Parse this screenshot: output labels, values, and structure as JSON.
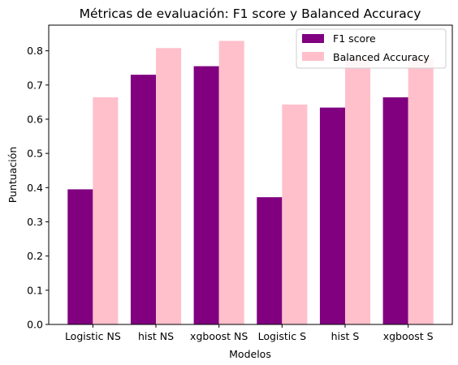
{
  "chart_data": {
    "type": "bar",
    "title": "Métricas de evaluación: F1 score y Balanced Accuracy",
    "xlabel": "Modelos",
    "ylabel": "Puntuación",
    "categories": [
      "Logistic NS",
      "hist NS",
      "xgboost NS",
      "Logistic S",
      "hist S",
      "xgboost S"
    ],
    "series": [
      {
        "name": "F1 score",
        "color": "#800080",
        "values": [
          0.395,
          0.73,
          0.755,
          0.372,
          0.634,
          0.664
        ]
      },
      {
        "name": "Balanced Accuracy",
        "color": "#FFC0CB",
        "values": [
          0.664,
          0.808,
          0.829,
          0.643,
          0.778,
          0.778
        ]
      }
    ],
    "ylim": [
      0,
      0.875
    ],
    "yticks": [
      "0.0",
      "0.1",
      "0.2",
      "0.3",
      "0.4",
      "0.5",
      "0.6",
      "0.7",
      "0.8"
    ],
    "grid": false,
    "legend_position": "top-right"
  }
}
